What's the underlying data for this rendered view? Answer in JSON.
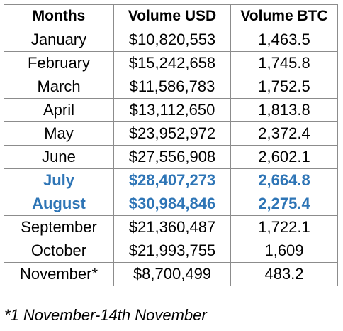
{
  "table": {
    "headers": [
      "Months",
      "Volume USD",
      "Volume BTC"
    ],
    "rows": [
      {
        "month": "January",
        "usd": "$10,820,553",
        "btc": "1,463.5",
        "highlight": false
      },
      {
        "month": "February",
        "usd": "$15,242,658",
        "btc": "1,745.8",
        "highlight": false
      },
      {
        "month": "March",
        "usd": "$11,586,783",
        "btc": "1,752.5",
        "highlight": false
      },
      {
        "month": "April",
        "usd": "$13,112,650",
        "btc": "1,813.8",
        "highlight": false
      },
      {
        "month": "May",
        "usd": "$23,952,972",
        "btc": "2,372.4",
        "highlight": false
      },
      {
        "month": "June",
        "usd": "$27,556,908",
        "btc": "2,602.1",
        "highlight": false
      },
      {
        "month": "July",
        "usd": "$28,407,273",
        "btc": "2,664.8",
        "highlight": true
      },
      {
        "month": "August",
        "usd": "$30,984,846",
        "btc": "2,275.4",
        "highlight": true
      },
      {
        "month": "September",
        "usd": "$21,360,487",
        "btc": "1,722.1",
        "highlight": false
      },
      {
        "month": "October",
        "usd": "$21,993,755",
        "btc": "1,609",
        "highlight": false
      },
      {
        "month": "November*",
        "usd": "$8,700,499",
        "btc": "483.2",
        "highlight": false
      }
    ]
  },
  "footnote": "*1 November-14th November",
  "colors": {
    "text": "#000000",
    "highlight_text": "#2e75b6",
    "border": "#8c8c8c"
  }
}
